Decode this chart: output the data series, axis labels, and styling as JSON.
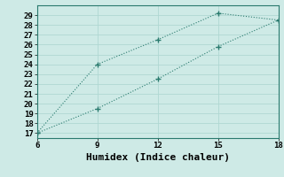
{
  "line1_x": [
    6,
    9,
    12,
    15,
    18
  ],
  "line1_y": [
    17,
    24,
    26.5,
    29.2,
    28.5
  ],
  "line2_x": [
    6,
    9,
    12,
    15,
    18
  ],
  "line2_y": [
    17,
    19.5,
    22.5,
    25.8,
    28.5
  ],
  "line_color": "#2a7a6e",
  "bg_color": "#ceeae6",
  "grid_color": "#b0d8d2",
  "xlabel": "Humidex (Indice chaleur)",
  "xlim": [
    6,
    18
  ],
  "ylim": [
    16.5,
    30
  ],
  "xticks": [
    6,
    9,
    12,
    15,
    18
  ],
  "yticks": [
    17,
    18,
    19,
    20,
    21,
    22,
    23,
    24,
    25,
    26,
    27,
    28,
    29
  ],
  "markersize": 4,
  "linewidth": 0.8,
  "xlabel_fontsize": 8,
  "tick_fontsize": 6.5
}
